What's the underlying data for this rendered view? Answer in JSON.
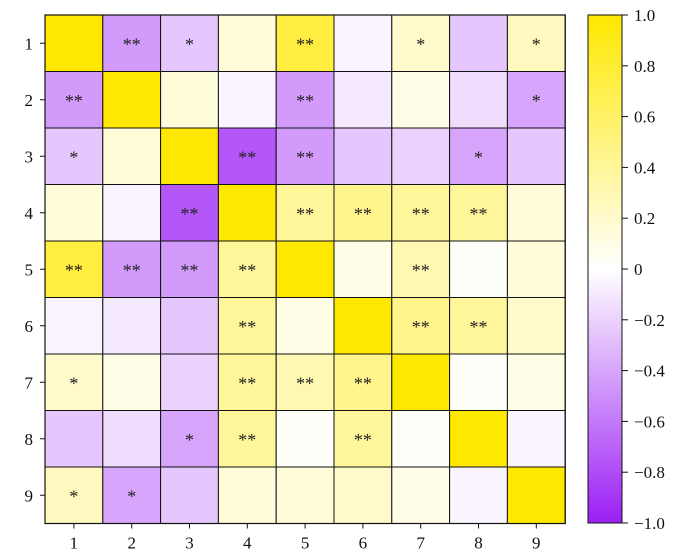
{
  "chart_data": {
    "type": "heatmap",
    "title": "",
    "xlabel": "",
    "ylabel": "",
    "x_categories": [
      "1",
      "2",
      "3",
      "4",
      "5",
      "6",
      "7",
      "8",
      "9"
    ],
    "y_categories": [
      "1",
      "2",
      "3",
      "4",
      "5",
      "6",
      "7",
      "8",
      "9"
    ],
    "values": [
      [
        1.0,
        -0.45,
        -0.25,
        0.15,
        0.75,
        -0.05,
        0.2,
        -0.25,
        0.25
      ],
      [
        -0.45,
        1.0,
        0.15,
        -0.05,
        -0.45,
        -0.1,
        0.1,
        -0.15,
        -0.4
      ],
      [
        -0.25,
        0.15,
        1.0,
        -0.75,
        -0.45,
        -0.25,
        -0.2,
        -0.4,
        -0.25
      ],
      [
        0.15,
        -0.05,
        -0.75,
        1.0,
        0.4,
        0.45,
        0.4,
        0.4,
        0.15
      ],
      [
        0.75,
        -0.45,
        -0.45,
        0.4,
        1.0,
        0.1,
        0.3,
        0.02,
        0.15
      ],
      [
        -0.05,
        -0.1,
        -0.25,
        0.4,
        0.1,
        1.0,
        0.45,
        0.4,
        0.2
      ],
      [
        0.2,
        0.1,
        -0.2,
        0.4,
        0.3,
        0.45,
        1.0,
        0.02,
        0.1
      ],
      [
        -0.25,
        -0.15,
        -0.4,
        0.4,
        0.02,
        0.4,
        0.02,
        1.0,
        -0.05
      ],
      [
        0.25,
        -0.4,
        -0.25,
        0.15,
        0.15,
        0.2,
        0.1,
        -0.05,
        1.0
      ]
    ],
    "annotations": [
      [
        "",
        "**",
        "*",
        "",
        "**",
        "",
        "*",
        "",
        "*"
      ],
      [
        "**",
        "",
        "",
        "",
        "**",
        "",
        "",
        "",
        "*"
      ],
      [
        "*",
        "",
        "",
        "**",
        "**",
        "",
        "",
        "*",
        ""
      ],
      [
        "",
        "",
        "**",
        "",
        "**",
        "**",
        "**",
        "**",
        ""
      ],
      [
        "**",
        "**",
        "**",
        "**",
        "",
        "",
        "**",
        "",
        ""
      ],
      [
        "",
        "",
        "",
        "**",
        "",
        "",
        "**",
        "**",
        ""
      ],
      [
        "*",
        "",
        "",
        "**",
        "**",
        "**",
        "",
        "",
        ""
      ],
      [
        "",
        "",
        "*",
        "**",
        "",
        "**",
        "",
        "",
        ""
      ],
      [
        "*",
        "*",
        "",
        "",
        "",
        "",
        "",
        "",
        ""
      ]
    ],
    "colorbar": {
      "range": [
        -1.0,
        1.0
      ],
      "ticks": [
        "1.0",
        "0.8",
        "0.6",
        "0.4",
        "0.2",
        "0",
        "−0.2",
        "−0.4",
        "−0.6",
        "−0.8",
        "−1.0"
      ],
      "tick_values": [
        1.0,
        0.8,
        0.6,
        0.4,
        0.2,
        0,
        -0.2,
        -0.4,
        -0.6,
        -0.8,
        -1.0
      ],
      "colors": {
        "min": "#9B1FF5",
        "mid": "#FFFFFF",
        "max": "#FFE800"
      }
    }
  }
}
